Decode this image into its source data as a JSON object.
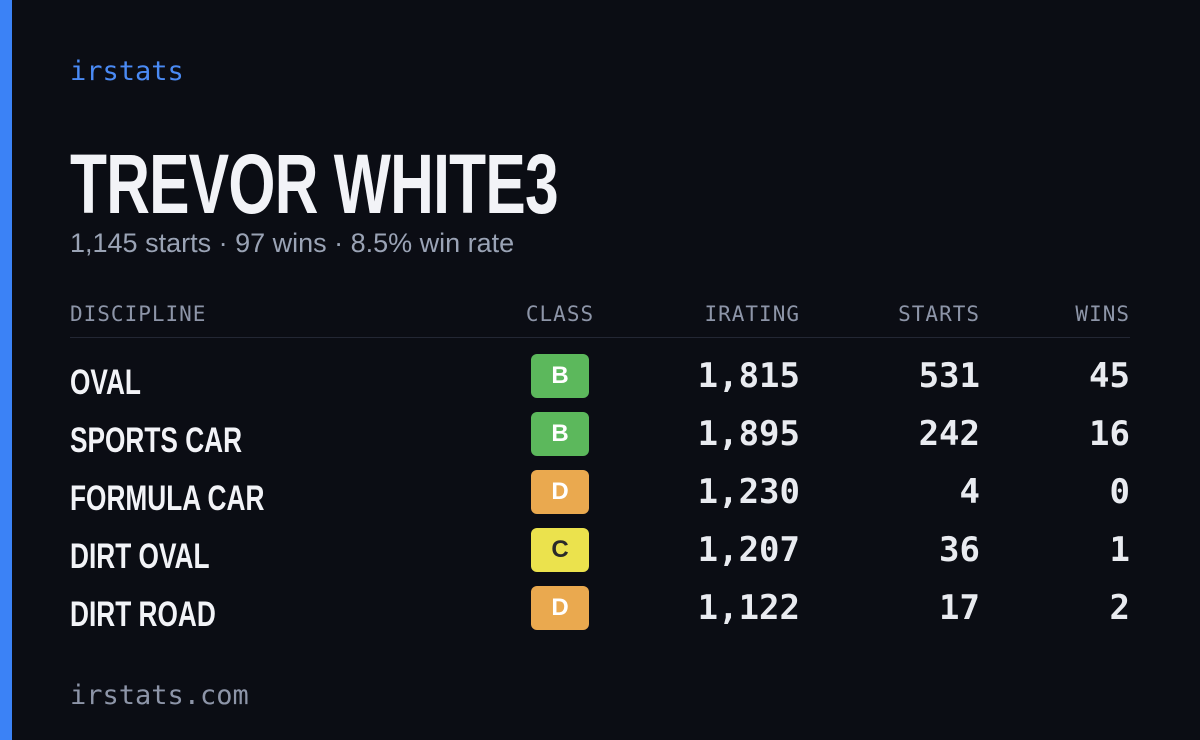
{
  "brand": "irstats",
  "driver": {
    "name": "TREVOR WHITE3",
    "summary": "1,145 starts · 97 wins · 8.5% win rate"
  },
  "table": {
    "headers": [
      "DISCIPLINE",
      "CLASS",
      "IRATING",
      "STARTS",
      "WINS"
    ],
    "rows": [
      [
        "OVAL",
        "B",
        "1,815",
        "531",
        "45"
      ],
      [
        "SPORTS CAR",
        "B",
        "1,895",
        "242",
        "16"
      ],
      [
        "FORMULA CAR",
        "D",
        "1,230",
        "4",
        "0"
      ],
      [
        "DIRT OVAL",
        "C",
        "1,207",
        "36",
        "1"
      ],
      [
        "DIRT ROAD",
        "D",
        "1,122",
        "17",
        "2"
      ]
    ]
  },
  "footer": "irstats.com"
}
